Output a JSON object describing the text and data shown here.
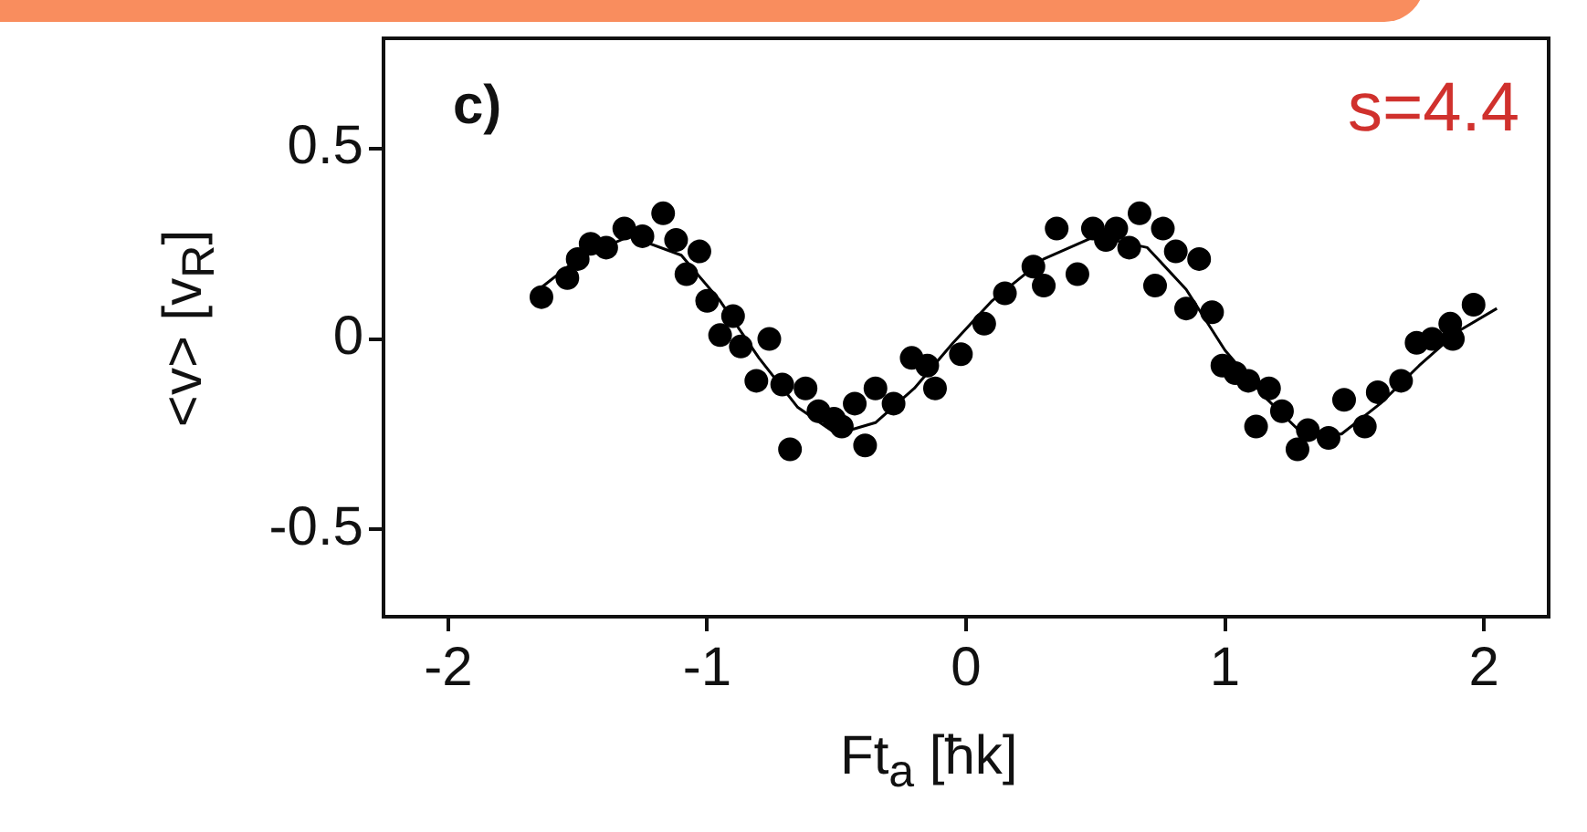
{
  "chart_data": {
    "type": "scatter",
    "xlabel": "Ft$_{a}$ [ħk]",
    "ylabel": "<v> [v$_{R}$]",
    "xlim": [
      -2.25,
      2.25
    ],
    "ylim": [
      -0.73,
      0.79
    ],
    "xticks": [
      -2,
      -1,
      0,
      1,
      2
    ],
    "yticks": [
      -0.5,
      0,
      0.5
    ],
    "grid": false,
    "legend": false,
    "marker": "circle",
    "annotations": [
      "c)",
      "s=4.4"
    ],
    "series": [
      {
        "color": "#000000",
        "x": [
          -1.64,
          -1.54,
          -1.5,
          -1.45,
          -1.39,
          -1.32,
          -1.25,
          -1.17,
          -1.12,
          -1.08,
          -1.03,
          -1.0,
          -0.95,
          -0.9,
          -0.87,
          -0.81,
          -0.76,
          -0.71,
          -0.68,
          -0.62,
          -0.57,
          -0.51,
          -0.48,
          -0.43,
          -0.39,
          -0.35,
          -0.28,
          -0.21,
          -0.15,
          -0.12,
          -0.02,
          0.07,
          0.15,
          0.26,
          0.3,
          0.35,
          0.43,
          0.49,
          0.54,
          0.58,
          0.63,
          0.67,
          0.73,
          0.76,
          0.81,
          0.85,
          0.9,
          0.95,
          0.99,
          1.04,
          1.09,
          1.12,
          1.17,
          1.22,
          1.28,
          1.32,
          1.4,
          1.46,
          1.54,
          1.59,
          1.68,
          1.74,
          1.8,
          1.87,
          1.88,
          1.96
        ],
        "values": [
          0.11,
          0.16,
          0.21,
          0.25,
          0.24,
          0.29,
          0.27,
          0.33,
          0.26,
          0.17,
          0.23,
          0.1,
          0.01,
          0.06,
          -0.02,
          -0.11,
          0.0,
          -0.12,
          -0.29,
          -0.13,
          -0.19,
          -0.21,
          -0.23,
          -0.17,
          -0.28,
          -0.13,
          -0.17,
          -0.05,
          -0.07,
          -0.13,
          -0.04,
          0.04,
          0.12,
          0.19,
          0.14,
          0.29,
          0.17,
          0.29,
          0.26,
          0.29,
          0.24,
          0.33,
          0.14,
          0.29,
          0.23,
          0.08,
          0.21,
          0.07,
          -0.07,
          -0.09,
          -0.11,
          -0.23,
          -0.13,
          -0.19,
          -0.29,
          -0.24,
          -0.26,
          -0.16,
          -0.23,
          -0.14,
          -0.11,
          -0.01,
          0.0,
          0.04,
          0.0,
          0.09
        ]
      },
      {
        "type": "line",
        "color": "#000000",
        "marker": "none",
        "line_style": "solid",
        "x": [
          -1.65,
          -1.5,
          -1.3,
          -1.1,
          -0.95,
          -0.8,
          -0.65,
          -0.5,
          -0.35,
          -0.2,
          -0.05,
          0.1,
          0.3,
          0.5,
          0.7,
          0.85,
          1.0,
          1.15,
          1.3,
          1.45,
          1.6,
          1.75,
          1.9,
          2.05
        ],
        "values": [
          0.13,
          0.21,
          0.27,
          0.22,
          0.1,
          -0.05,
          -0.18,
          -0.25,
          -0.22,
          -0.13,
          -0.01,
          0.1,
          0.21,
          0.27,
          0.24,
          0.13,
          -0.03,
          -0.15,
          -0.25,
          -0.25,
          -0.17,
          -0.07,
          0.02,
          0.08
        ]
      }
    ]
  }
}
